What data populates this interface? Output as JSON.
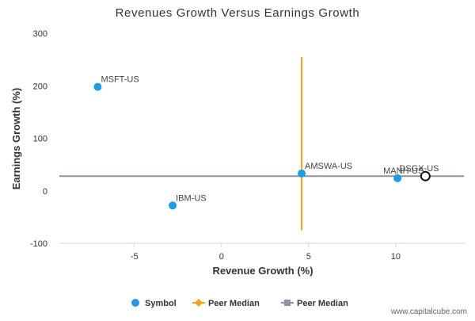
{
  "chart_data": {
    "type": "scatter",
    "title": "Revenues Growth Versus Earnings Growth",
    "xlabel": "Revenue Growth (%)",
    "ylabel": "Earnings Growth (%)",
    "xlim": [
      -9.3,
      14
    ],
    "ylim": [
      -100,
      300
    ],
    "xticks": [
      -5,
      0,
      5,
      10
    ],
    "yticks": [
      -100,
      0,
      100,
      200,
      300
    ],
    "grid": false,
    "legend_position": "bottom",
    "points": [
      {
        "label": "MSFT-US",
        "x": -7.1,
        "y": 198,
        "highlight": false
      },
      {
        "label": "IBM-US",
        "x": -2.8,
        "y": -28,
        "highlight": false
      },
      {
        "label": "AMSWA-US",
        "x": 4.6,
        "y": 33,
        "highlight": false
      },
      {
        "label": "MANH-US",
        "x": 10.1,
        "y": 24,
        "highlight": false
      },
      {
        "label": "DSGX-US",
        "x": 11.7,
        "y": 28,
        "highlight": true
      }
    ],
    "peer_median_x": {
      "x": 4.6,
      "y_range": [
        -75,
        255
      ]
    },
    "peer_median_y": {
      "y": 28
    },
    "legend": [
      {
        "label": "Symbol",
        "marker": "circle",
        "color": "#1f9be8"
      },
      {
        "label": "Peer Median",
        "marker": "diamond-line",
        "color": "#f7a21b"
      },
      {
        "label": "Peer Median",
        "marker": "square-line",
        "color": "#8a96a3"
      }
    ],
    "colors": {
      "symbol": "#1f9be8",
      "median_x": "#f7a21b",
      "median_y": "#8a96a3",
      "axis": "#c9d7e3",
      "text": "#333333"
    }
  },
  "footer": {
    "source": "www.capitalcube.com"
  }
}
